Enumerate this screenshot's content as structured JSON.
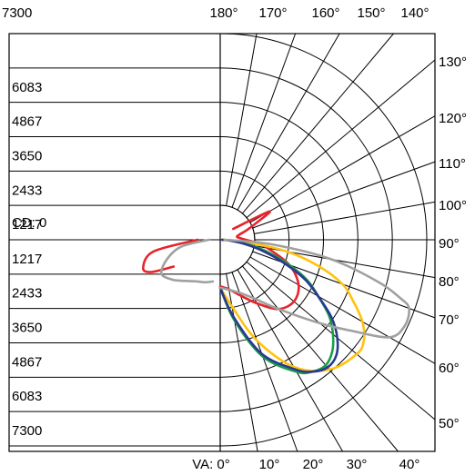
{
  "chart_data": {
    "type": "line",
    "subtype": "polar-photometric",
    "unit_label": "CD: 0",
    "rings": [
      "7300",
      "6083",
      "4867",
      "3650",
      "2433",
      "1217"
    ],
    "ring_values": [
      1217,
      2433,
      3650,
      4867,
      6083,
      7300
    ],
    "top_angle_labels": [
      "180°",
      "170°",
      "160°",
      "150°",
      "140°"
    ],
    "right_angle_labels": [
      "130°",
      "120°",
      "110°",
      "100°",
      "90°",
      "80°",
      "70°",
      "60°",
      "50°"
    ],
    "bottom_angle_labels": [
      "VA: 0°",
      "10°",
      "20°",
      "30°",
      "40°"
    ],
    "angle_units": "degrees",
    "series": [
      {
        "color": "#e8232b",
        "angles": [
          0,
          5,
          10,
          20,
          30,
          40,
          50,
          60,
          70,
          80,
          85,
          90,
          95,
          100,
          105,
          110,
          115,
          120,
          130
        ],
        "candela": [
          1650,
          1700,
          1780,
          2100,
          2600,
          3200,
          3400,
          3200,
          2600,
          1700,
          1300,
          900,
          700,
          600,
          700,
          1000,
          1400,
          2000,
          600
        ]
      },
      {
        "color": "#e8232b",
        "angles_left": [
          90,
          80,
          70,
          65,
          60
        ],
        "candela_left": [
          800,
          2400,
          2900,
          2700,
          1900
        ]
      },
      {
        "color": "#ffc20e",
        "angles": [
          0,
          10,
          20,
          30,
          40,
          50,
          55,
          60,
          65,
          70,
          75,
          80,
          85,
          90
        ],
        "candela": [
          1700,
          2400,
          3800,
          5200,
          6000,
          6300,
          6200,
          5800,
          5200,
          4600,
          3600,
          2400,
          900,
          100
        ]
      },
      {
        "color": "#1b9e4b",
        "angles": [
          0,
          10,
          20,
          30,
          35,
          40,
          45,
          50,
          55,
          60,
          65,
          70,
          75,
          80,
          85,
          90
        ],
        "candela": [
          1700,
          2900,
          4400,
          5400,
          5700,
          5800,
          5600,
          5200,
          4700,
          4000,
          3400,
          2600,
          1800,
          1100,
          400,
          80
        ]
      },
      {
        "color": "#2a3990",
        "angles": [
          0,
          10,
          20,
          30,
          35,
          40,
          45,
          50,
          55,
          60,
          65,
          70,
          75,
          80,
          85,
          90
        ],
        "candela": [
          1700,
          2800,
          4300,
          5300,
          5700,
          5900,
          5800,
          5400,
          4800,
          4000,
          3300,
          2400,
          1600,
          900,
          350,
          60
        ]
      },
      {
        "color": "#a0a0a0",
        "angles": [
          0,
          10,
          20,
          30,
          40,
          50,
          55,
          60,
          65,
          70,
          72,
          75,
          80,
          85,
          90
        ],
        "candela": [
          1700,
          1800,
          2000,
          2400,
          3200,
          4600,
          5600,
          6900,
          7200,
          7100,
          6700,
          5800,
          4000,
          1800,
          150
        ]
      },
      {
        "color": "#a0a0a0",
        "angles_left": [
          90,
          80,
          70,
          60,
          50,
          40,
          30,
          20,
          10
        ],
        "candela_left": [
          400,
          1400,
          2000,
          2400,
          2200,
          1900,
          1700,
          1600,
          1500
        ]
      }
    ]
  }
}
